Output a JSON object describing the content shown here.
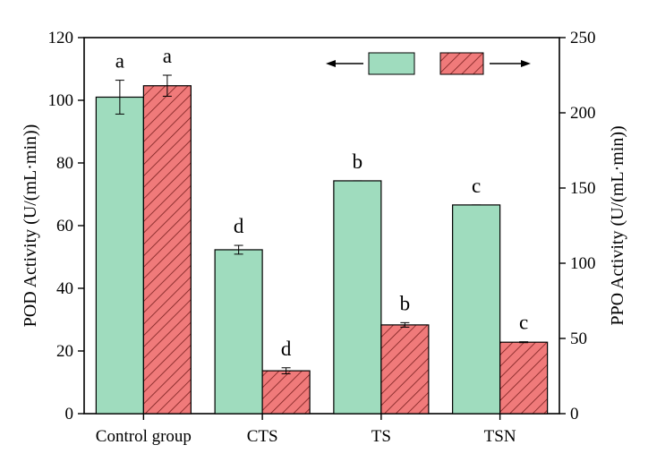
{
  "chart_data": {
    "type": "bar",
    "categories": [
      "Control group",
      "CTS",
      "TS",
      "TSN"
    ],
    "left_axis": {
      "label": "POD Activity (U/(mL·min))",
      "ylim": [
        0,
        120
      ],
      "ticks": [
        0,
        20,
        40,
        60,
        80,
        100,
        120
      ]
    },
    "right_axis": {
      "label": "PPO Activity (U/(mL·min))",
      "ylim": [
        0,
        250
      ],
      "ticks": [
        0,
        50,
        100,
        150,
        200,
        250
      ]
    },
    "series": [
      {
        "axis": "left",
        "color": "#9fdcbe",
        "pattern": "solid",
        "values": [
          101,
          52.3,
          74.3,
          66.6
        ],
        "errors": [
          5.4,
          1.4,
          0,
          0
        ],
        "sig_letters": [
          "a",
          "d",
          "b",
          "c"
        ]
      },
      {
        "axis": "right",
        "color": "#f07a7a",
        "pattern": "hatched",
        "values": [
          218,
          28.5,
          59,
          47.5
        ],
        "errors": [
          7,
          2,
          1.5,
          0.3
        ],
        "sig_letters": [
          "a",
          "d",
          "b",
          "c"
        ]
      }
    ],
    "legend": {
      "placement": "top-right",
      "arrows": [
        "left",
        "right"
      ]
    },
    "grid": false
  }
}
